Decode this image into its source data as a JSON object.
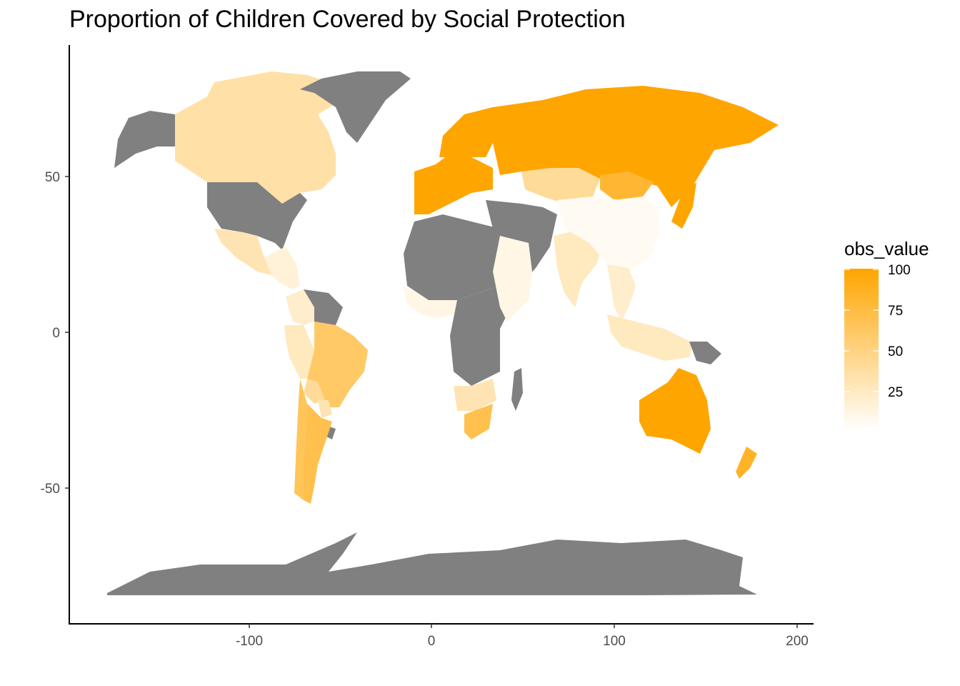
{
  "title": "Proportion of Children Covered by Social Protection",
  "colors": {
    "no_data": "#808080",
    "scale_low": "#FFFFFF",
    "scale_high": "#FFA500",
    "axis": "#000000"
  },
  "legend": {
    "title": "obs_value",
    "breaks": [
      "100",
      "75",
      "50",
      "25"
    ]
  },
  "axes": {
    "x_ticks": [
      "-100",
      "0",
      "100",
      "200"
    ],
    "y_ticks": [
      "50",
      "0",
      "-50"
    ]
  },
  "chart_data": {
    "type": "choropleth",
    "title": "Proportion of Children Covered by Social Protection",
    "xlabel": "",
    "ylabel": "",
    "xlim": [
      -198,
      210
    ],
    "ylim": [
      -94,
      92
    ],
    "fill_variable": "obs_value",
    "fill_range": [
      0,
      100
    ],
    "no_data_color": "#808080",
    "regions": [
      {
        "name": "Canada",
        "value": 35
      },
      {
        "name": "Alaska (US)",
        "value": null
      },
      {
        "name": "United States",
        "value": null
      },
      {
        "name": "Greenland",
        "value": null
      },
      {
        "name": "Mexico",
        "value": 30
      },
      {
        "name": "Central America",
        "value": 15
      },
      {
        "name": "Colombia",
        "value": 20
      },
      {
        "name": "Venezuela / Guianas",
        "value": null
      },
      {
        "name": "Peru / Ecuador",
        "value": 25
      },
      {
        "name": "Brazil",
        "value": 60
      },
      {
        "name": "Bolivia",
        "value": 40
      },
      {
        "name": "Paraguay",
        "value": 30
      },
      {
        "name": "Uruguay",
        "value": null
      },
      {
        "name": "Argentina",
        "value": 70
      },
      {
        "name": "Chile",
        "value": 65
      },
      {
        "name": "Western Europe",
        "value": 100
      },
      {
        "name": "Scandinavia",
        "value": 100
      },
      {
        "name": "Russia",
        "value": 100
      },
      {
        "name": "Mongolia",
        "value": 80
      },
      {
        "name": "Kazakhstan",
        "value": 40
      },
      {
        "name": "Middle East",
        "value": null
      },
      {
        "name": "North Africa",
        "value": null
      },
      {
        "name": "Sahel West Africa",
        "value": 10
      },
      {
        "name": "Central Africa",
        "value": null
      },
      {
        "name": "East Africa",
        "value": 10
      },
      {
        "name": "Southern Africa",
        "value": 30
      },
      {
        "name": "South Africa",
        "value": 70
      },
      {
        "name": "Madagascar",
        "value": null
      },
      {
        "name": "India",
        "value": 25
      },
      {
        "name": "China",
        "value": 5
      },
      {
        "name": "Southeast Asia",
        "value": 20
      },
      {
        "name": "Indonesia / Philippines",
        "value": 25
      },
      {
        "name": "Papua New Guinea",
        "value": null
      },
      {
        "name": "Japan",
        "value": 100
      },
      {
        "name": "Australia",
        "value": 100
      },
      {
        "name": "New Zealand",
        "value": 85
      },
      {
        "name": "Antarctica",
        "value": null
      }
    ]
  }
}
